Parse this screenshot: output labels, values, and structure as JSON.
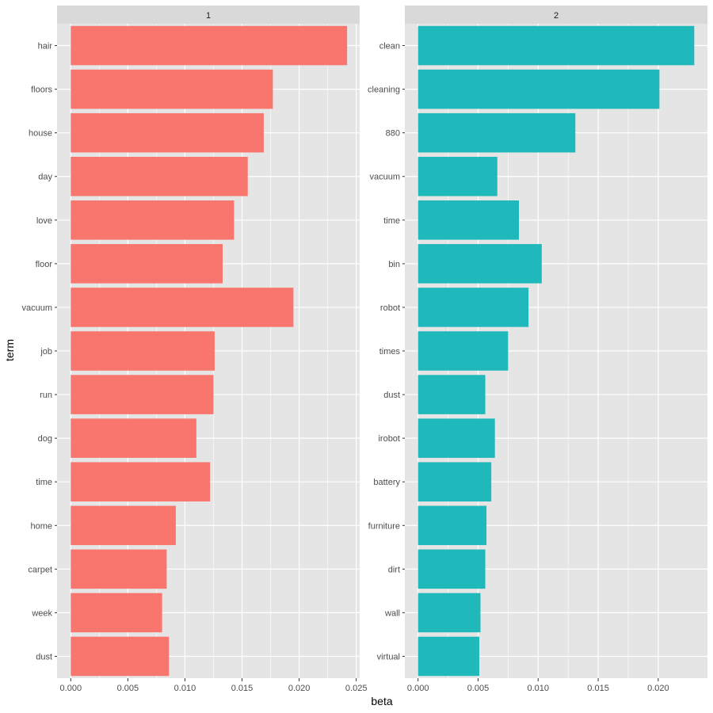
{
  "chart_data": {
    "type": "bar",
    "orientation": "horizontal",
    "layout": "faceted",
    "xlabel": "beta",
    "ylabel": "term",
    "grid": true,
    "legend": "none",
    "colors": {
      "panel_bg": "#e5e5e5",
      "strip_bg": "#d9d9d9",
      "grid": "#ffffff",
      "text": "#4d4d4d"
    },
    "facets": [
      {
        "strip_label": "1",
        "color": "#f8766d",
        "xlim": [
          -0.0012,
          0.0253
        ],
        "xticks": [
          0,
          0.005,
          0.01,
          0.015,
          0.02,
          0.025
        ],
        "xtick_labels": [
          "0.000",
          "0.005",
          "0.010",
          "0.015",
          "0.020",
          "0.025"
        ],
        "categories": [
          "hair",
          "floors",
          "house",
          "day",
          "love",
          "floor",
          "vacuum",
          "job",
          "run",
          "dog",
          "time",
          "home",
          "carpet",
          "week",
          "dust"
        ],
        "values": [
          0.0242,
          0.0177,
          0.0169,
          0.0155,
          0.0143,
          0.0133,
          0.0195,
          0.0126,
          0.0125,
          0.011,
          0.0122,
          0.0092,
          0.0084,
          0.008,
          0.0086
        ]
      },
      {
        "strip_label": "2",
        "color": "#1fb8bb",
        "xlim": [
          -0.0011,
          0.0241
        ],
        "xticks": [
          0,
          0.005,
          0.01,
          0.015,
          0.02
        ],
        "xtick_labels": [
          "0.000",
          "0.005",
          "0.010",
          "0.015",
          "0.020"
        ],
        "categories": [
          "clean",
          "cleaning",
          "880",
          "vacuum",
          "time",
          "bin",
          "robot",
          "times",
          "dust",
          "irobot",
          "battery",
          "furniture",
          "dirt",
          "wall",
          "virtual"
        ],
        "values": [
          0.023,
          0.0201,
          0.0131,
          0.0066,
          0.0084,
          0.0103,
          0.0092,
          0.0075,
          0.0056,
          0.0064,
          0.0061,
          0.0057,
          0.0056,
          0.0052,
          0.0051
        ]
      }
    ]
  }
}
